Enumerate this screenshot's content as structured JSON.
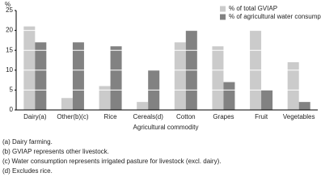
{
  "chart_data": {
    "type": "bar",
    "y_label": "%",
    "x_label": "Agricultural commodity",
    "categories": [
      "Dairy(a)",
      "Other(b)(c)",
      "Rice",
      "Cereals(d)",
      "Cotton",
      "Grapes",
      "Fruit",
      "Vegetables"
    ],
    "series": [
      {
        "name": "% of total GVIAP",
        "color": "#cbcbcb",
        "values": [
          21,
          3,
          6,
          2,
          17,
          16,
          20,
          12
        ]
      },
      {
        "name": "% of agricultural water consumption",
        "color": "#828282",
        "values": [
          17,
          17,
          16,
          10,
          20,
          7,
          5,
          2
        ]
      }
    ],
    "ylim": [
      0,
      25
    ],
    "yticks": [
      0,
      5,
      10,
      15,
      20,
      25
    ],
    "grid": true,
    "grid_color": "#ffffff",
    "legend": "top-right",
    "footnotes": [
      "(a) Dairy farming.",
      "(b) GVIAP represents other livestock.",
      "(c) Water consumption represents irrigated pasture for livestock (excl. dairy).",
      "(d) Excludes rice."
    ]
  }
}
